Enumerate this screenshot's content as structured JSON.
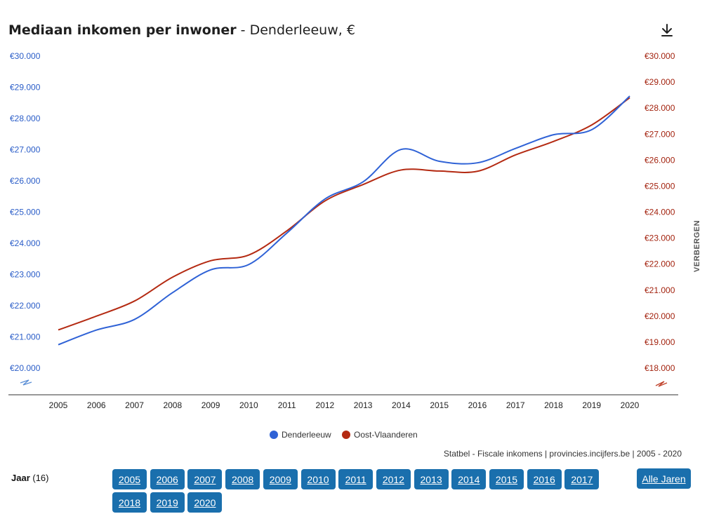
{
  "title": {
    "main": "Mediaan inkomen per inwoner",
    "sub": " - Denderleeuw, €"
  },
  "icons": {
    "download": "download-icon",
    "axis_break_left": "axis-break-icon",
    "axis_break_right": "axis-break-icon"
  },
  "hide_label": "VERBERGEN",
  "source": "Statbel - Fiscale inkomens | provincies.incijfers.be | 2005 - 2020",
  "colors": {
    "denderleeuw": "#2f62d6",
    "oost_vlaanderen": "#b42a12",
    "button": "#1a6fad"
  },
  "chart_data": {
    "type": "line",
    "x": [
      "2005",
      "2006",
      "2007",
      "2008",
      "2009",
      "2010",
      "2011",
      "2012",
      "2013",
      "2014",
      "2015",
      "2016",
      "2017",
      "2018",
      "2019",
      "2020"
    ],
    "series": [
      {
        "name": "Denderleeuw",
        "axis": "left",
        "values": [
          20750,
          21220,
          21560,
          22420,
          23150,
          23320,
          24330,
          25420,
          25970,
          27010,
          26630,
          26580,
          27040,
          27480,
          27640,
          28720
        ]
      },
      {
        "name": "Oost-Vlaanderen",
        "axis": "right",
        "values": [
          19470,
          20000,
          20580,
          21500,
          22130,
          22350,
          23280,
          24430,
          25060,
          25620,
          25580,
          25570,
          26200,
          26720,
          27350,
          28400
        ]
      }
    ],
    "y_left": {
      "min": 20000,
      "max": 30000,
      "ticks": [
        "€20.000",
        "€21.000",
        "€22.000",
        "€23.000",
        "€24.000",
        "€25.000",
        "€26.000",
        "€27.000",
        "€28.000",
        "€29.000",
        "€30.000"
      ]
    },
    "y_right": {
      "min": 18000,
      "max": 30000,
      "ticks": [
        "€18.000",
        "€19.000",
        "€20.000",
        "€21.000",
        "€22.000",
        "€23.000",
        "€24.000",
        "€25.000",
        "€26.000",
        "€27.000",
        "€28.000",
        "€29.000",
        "€30.000"
      ]
    },
    "legend": [
      "Denderleeuw",
      "Oost-Vlaanderen"
    ],
    "legend_position": "bottom-center",
    "grid": false
  },
  "year_filter": {
    "label": "Jaar",
    "count": "(16)",
    "years": [
      "2005",
      "2006",
      "2007",
      "2008",
      "2009",
      "2010",
      "2011",
      "2012",
      "2013",
      "2014",
      "2015",
      "2016",
      "2017",
      "2018",
      "2019",
      "2020"
    ],
    "all_label": "Alle Jaren"
  }
}
